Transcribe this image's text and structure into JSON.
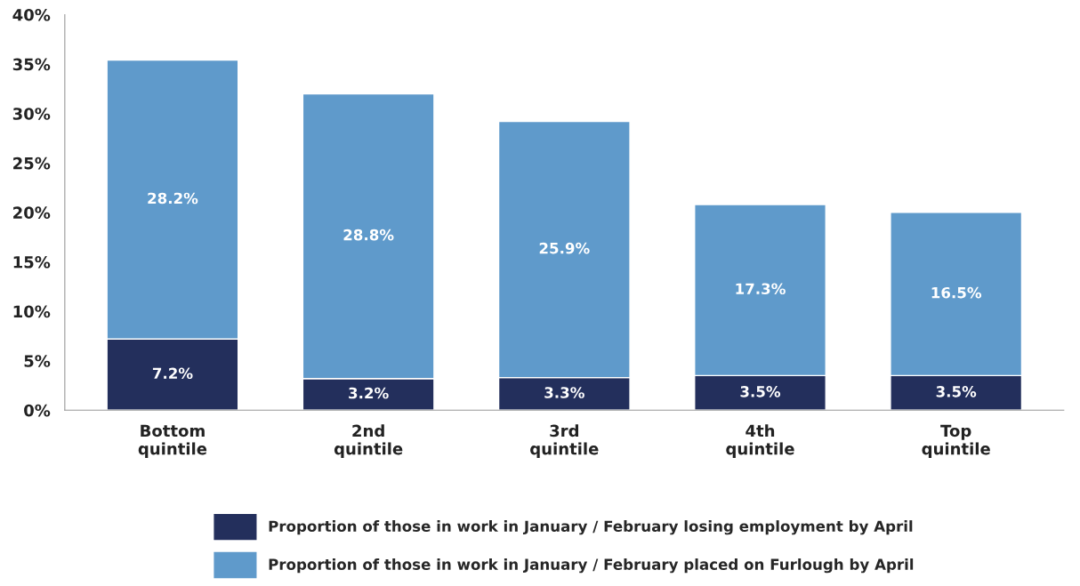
{
  "chart_data": {
    "type": "bar",
    "stacked": true,
    "categories": [
      "Bottom\nquintile",
      "2nd\nquintile",
      "3rd\nquintile",
      "4th\nquintile",
      "Top\nquintile"
    ],
    "series": [
      {
        "name": "Proportion of those in work in January / February losing employment by April",
        "color": "#232f5c",
        "values": [
          7.2,
          3.2,
          3.3,
          3.5,
          3.5
        ],
        "value_labels": [
          "7.2%",
          "3.2%",
          "3.3%",
          "3.5%",
          "3.5%"
        ]
      },
      {
        "name": "Proportion of those in work in January / February placed on Furlough by April",
        "color": "#5f9acb",
        "values": [
          28.2,
          28.8,
          25.9,
          17.3,
          16.5
        ],
        "value_labels": [
          "28.2%",
          "28.8%",
          "25.9%",
          "17.3%",
          "16.5%"
        ]
      }
    ],
    "ylim": [
      0,
      40
    ],
    "yticks": [
      {
        "value": 0,
        "label": "0%"
      },
      {
        "value": 5,
        "label": "5%"
      },
      {
        "value": 10,
        "label": "10%"
      },
      {
        "value": 15,
        "label": "15%"
      },
      {
        "value": 20,
        "label": "20%"
      },
      {
        "value": 25,
        "label": "25%"
      },
      {
        "value": 30,
        "label": "30%"
      },
      {
        "value": 35,
        "label": "35%"
      },
      {
        "value": 40,
        "label": "40%"
      }
    ],
    "grid": false,
    "legend": "bottom"
  }
}
